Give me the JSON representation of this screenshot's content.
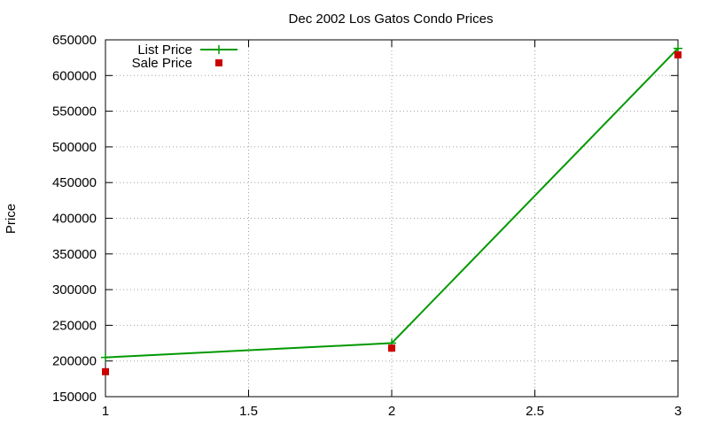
{
  "chart_data": {
    "type": "line",
    "title": "Dec 2002 Los Gatos Condo Prices",
    "xlabel": "",
    "ylabel": "Price",
    "xlim": [
      1,
      3
    ],
    "ylim": [
      150000,
      650000
    ],
    "xticks": [
      1,
      1.5,
      2,
      2.5,
      3
    ],
    "xtick_labels": [
      "1",
      "1.5",
      "2",
      "2.5",
      "3"
    ],
    "yticks": [
      150000,
      200000,
      250000,
      300000,
      350000,
      400000,
      450000,
      500000,
      550000,
      600000,
      650000
    ],
    "ytick_labels": [
      "150000",
      "200000",
      "250000",
      "300000",
      "350000",
      "400000",
      "450000",
      "500000",
      "550000",
      "600000",
      "650000"
    ],
    "grid": true,
    "legend_position": "top-left",
    "series": [
      {
        "name": "List Price",
        "style": "linespoints",
        "marker": "plus",
        "color": "#009900",
        "x": [
          1,
          2,
          3
        ],
        "y": [
          205000,
          225000,
          638000
        ]
      },
      {
        "name": "Sale Price",
        "style": "points",
        "marker": "square",
        "color": "#cc0000",
        "x": [
          1,
          2,
          3
        ],
        "y": [
          185000,
          218000,
          629000
        ]
      }
    ]
  }
}
